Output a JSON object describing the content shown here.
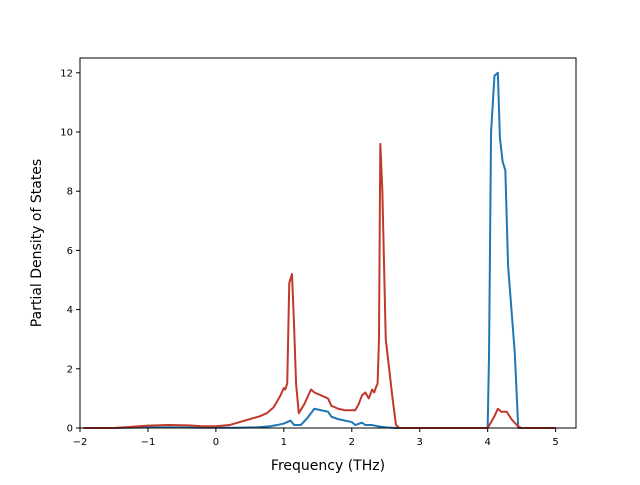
{
  "chart_data": {
    "type": "line",
    "xlabel": "Frequency (THz)",
    "ylabel": "Partial Density of States",
    "xlim": [
      -2.0,
      5.3
    ],
    "ylim": [
      0,
      12.5
    ],
    "xticks": [
      -2,
      -1,
      0,
      1,
      2,
      3,
      4,
      5
    ],
    "yticks": [
      0,
      2,
      4,
      6,
      8,
      10,
      12
    ],
    "grid": false,
    "legend": "none",
    "series": [
      {
        "color": "#1f77b4",
        "points": [
          [
            -1.95,
            0
          ],
          [
            -1.5,
            0
          ],
          [
            -1.3,
            0.01
          ],
          [
            -1.0,
            0.02
          ],
          [
            -0.6,
            0.02
          ],
          [
            -0.2,
            0.01
          ],
          [
            0.0,
            0.01
          ],
          [
            0.3,
            0.01
          ],
          [
            0.6,
            0.02
          ],
          [
            0.8,
            0.06
          ],
          [
            0.9,
            0.1
          ],
          [
            1.0,
            0.15
          ],
          [
            1.05,
            0.2
          ],
          [
            1.1,
            0.25
          ],
          [
            1.15,
            0.1
          ],
          [
            1.25,
            0.1
          ],
          [
            1.35,
            0.35
          ],
          [
            1.45,
            0.65
          ],
          [
            1.55,
            0.6
          ],
          [
            1.65,
            0.55
          ],
          [
            1.7,
            0.38
          ],
          [
            1.8,
            0.3
          ],
          [
            1.9,
            0.25
          ],
          [
            2.0,
            0.2
          ],
          [
            2.05,
            0.1
          ],
          [
            2.15,
            0.18
          ],
          [
            2.2,
            0.1
          ],
          [
            2.3,
            0.1
          ],
          [
            2.4,
            0.05
          ],
          [
            2.5,
            0.02
          ],
          [
            2.65,
            0
          ],
          [
            3.0,
            0
          ],
          [
            3.5,
            0
          ],
          [
            3.9,
            0
          ],
          [
            4.0,
            0
          ],
          [
            4.02,
            2.5
          ],
          [
            4.05,
            10.0
          ],
          [
            4.1,
            11.9
          ],
          [
            4.15,
            12.0
          ],
          [
            4.18,
            9.8
          ],
          [
            4.22,
            9.0
          ],
          [
            4.26,
            8.7
          ],
          [
            4.3,
            5.5
          ],
          [
            4.35,
            4.0
          ],
          [
            4.4,
            2.5
          ],
          [
            4.45,
            0
          ],
          [
            5.0,
            0
          ]
        ]
      },
      {
        "color": "#c0392b",
        "points": [
          [
            -1.95,
            0
          ],
          [
            -1.5,
            0
          ],
          [
            -1.3,
            0.03
          ],
          [
            -1.0,
            0.08
          ],
          [
            -0.7,
            0.1
          ],
          [
            -0.4,
            0.09
          ],
          [
            -0.2,
            0.06
          ],
          [
            0.0,
            0.06
          ],
          [
            0.2,
            0.1
          ],
          [
            0.35,
            0.2
          ],
          [
            0.5,
            0.3
          ],
          [
            0.65,
            0.4
          ],
          [
            0.75,
            0.5
          ],
          [
            0.8,
            0.6
          ],
          [
            0.85,
            0.7
          ],
          [
            0.9,
            0.9
          ],
          [
            0.95,
            1.1
          ],
          [
            1.0,
            1.35
          ],
          [
            1.02,
            1.3
          ],
          [
            1.05,
            1.5
          ],
          [
            1.08,
            4.9
          ],
          [
            1.12,
            5.2
          ],
          [
            1.15,
            3.5
          ],
          [
            1.18,
            1.5
          ],
          [
            1.22,
            0.5
          ],
          [
            1.3,
            0.8
          ],
          [
            1.4,
            1.3
          ],
          [
            1.45,
            1.2
          ],
          [
            1.55,
            1.1
          ],
          [
            1.65,
            1.0
          ],
          [
            1.7,
            0.75
          ],
          [
            1.8,
            0.65
          ],
          [
            1.9,
            0.6
          ],
          [
            2.0,
            0.6
          ],
          [
            2.05,
            0.6
          ],
          [
            2.1,
            0.8
          ],
          [
            2.15,
            1.1
          ],
          [
            2.2,
            1.2
          ],
          [
            2.25,
            1.0
          ],
          [
            2.3,
            1.3
          ],
          [
            2.33,
            1.2
          ],
          [
            2.36,
            1.4
          ],
          [
            2.38,
            1.5
          ],
          [
            2.4,
            3.0
          ],
          [
            2.42,
            9.6
          ],
          [
            2.45,
            8.0
          ],
          [
            2.5,
            3.0
          ],
          [
            2.55,
            2.0
          ],
          [
            2.6,
            1.0
          ],
          [
            2.65,
            0.1
          ],
          [
            2.7,
            0
          ],
          [
            3.0,
            0
          ],
          [
            3.5,
            0
          ],
          [
            4.0,
            0
          ],
          [
            4.05,
            0.2
          ],
          [
            4.1,
            0.4
          ],
          [
            4.15,
            0.65
          ],
          [
            4.2,
            0.55
          ],
          [
            4.28,
            0.55
          ],
          [
            4.35,
            0.3
          ],
          [
            4.45,
            0.05
          ],
          [
            4.5,
            0
          ],
          [
            5.0,
            0
          ]
        ]
      }
    ]
  }
}
